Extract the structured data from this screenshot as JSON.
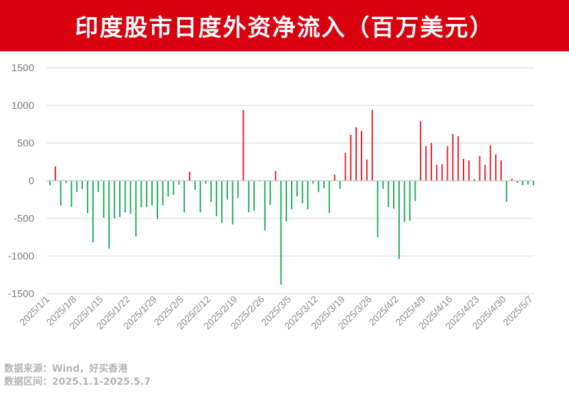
{
  "header": {
    "title": "印度股市日度外资净流入（百万美元）"
  },
  "footer": {
    "source": "数据来源：Wind，好买香港",
    "range": "数据区间：2025.1.1-2025.5.7"
  },
  "chart_data": {
    "type": "bar",
    "title": "印度股市日度外资净流入（百万美元）",
    "xlabel": "",
    "ylabel": "",
    "ylim": [
      -1500,
      1500
    ],
    "yticks": [
      1500,
      1000,
      500,
      0,
      -500,
      -1000,
      -1500
    ],
    "grid": true,
    "colors": {
      "positive": "#e8202a",
      "negative": "#1fae5a",
      "grid": "#d9d9d9",
      "axis": "#bfbfbf"
    },
    "xtick_labels": [
      "2025/1/1",
      "2025/1/8",
      "2025/1/15",
      "2025/1/22",
      "2025/1/29",
      "2025/2/5",
      "2025/2/12",
      "2025/2/19",
      "2025/2/26",
      "2025/3/5",
      "2025/3/12",
      "2025/3/19",
      "2025/3/26",
      "2025/4/2",
      "2025/4/9",
      "2025/4/16",
      "2025/4/23",
      "2025/4/30",
      "2025/5/7"
    ],
    "dates": [
      "2025/1/1",
      "2025/1/2",
      "2025/1/3",
      "2025/1/6",
      "2025/1/7",
      "2025/1/8",
      "2025/1/9",
      "2025/1/10",
      "2025/1/13",
      "2025/1/14",
      "2025/1/15",
      "2025/1/16",
      "2025/1/17",
      "2025/1/20",
      "2025/1/21",
      "2025/1/22",
      "2025/1/23",
      "2025/1/24",
      "2025/1/27",
      "2025/1/28",
      "2025/1/29",
      "2025/1/30",
      "2025/1/31",
      "2025/2/3",
      "2025/2/4",
      "2025/2/5",
      "2025/2/6",
      "2025/2/7",
      "2025/2/10",
      "2025/2/11",
      "2025/2/12",
      "2025/2/13",
      "2025/2/14",
      "2025/2/17",
      "2025/2/18",
      "2025/2/19",
      "2025/2/20",
      "2025/2/21",
      "2025/2/24",
      "2025/2/25",
      "2025/2/26",
      "2025/2/27",
      "2025/2/28",
      "2025/3/3",
      "2025/3/4",
      "2025/3/5",
      "2025/3/6",
      "2025/3/7",
      "2025/3/10",
      "2025/3/11",
      "2025/3/12",
      "2025/3/13",
      "2025/3/14",
      "2025/3/17",
      "2025/3/18",
      "2025/3/19",
      "2025/3/20",
      "2025/3/21",
      "2025/3/24",
      "2025/3/25",
      "2025/3/26",
      "2025/3/27",
      "2025/3/28",
      "2025/3/31",
      "2025/4/1",
      "2025/4/2",
      "2025/4/3",
      "2025/4/4",
      "2025/4/7",
      "2025/4/8",
      "2025/4/9",
      "2025/4/10",
      "2025/4/11",
      "2025/4/14",
      "2025/4/15",
      "2025/4/16",
      "2025/4/17",
      "2025/4/18",
      "2025/4/21",
      "2025/4/22",
      "2025/4/23",
      "2025/4/24",
      "2025/4/25",
      "2025/4/28",
      "2025/4/29",
      "2025/4/30",
      "2025/5/1",
      "2025/5/2",
      "2025/5/5",
      "2025/5/6",
      "2025/5/7"
    ],
    "values": [
      -60,
      190,
      -330,
      -30,
      -350,
      -150,
      -110,
      -430,
      -820,
      -150,
      -490,
      -900,
      -500,
      -480,
      -420,
      -440,
      -740,
      -350,
      -350,
      -330,
      -510,
      -330,
      -210,
      -190,
      -50,
      -420,
      120,
      -120,
      -420,
      -40,
      -280,
      -470,
      -560,
      -250,
      -580,
      -230,
      940,
      -420,
      -400,
      -10,
      -660,
      -320,
      130,
      -1380,
      -540,
      -380,
      -210,
      -300,
      -380,
      -40,
      -150,
      -100,
      -430,
      80,
      -110,
      370,
      610,
      710,
      660,
      280,
      940,
      -750,
      -110,
      -350,
      -370,
      -1040,
      -550,
      -530,
      -270,
      790,
      460,
      500,
      210,
      220,
      460,
      620,
      590,
      290,
      270,
      20,
      330,
      210,
      470,
      350,
      270,
      -280,
      30,
      -30,
      -60,
      -50,
      -60
    ]
  }
}
